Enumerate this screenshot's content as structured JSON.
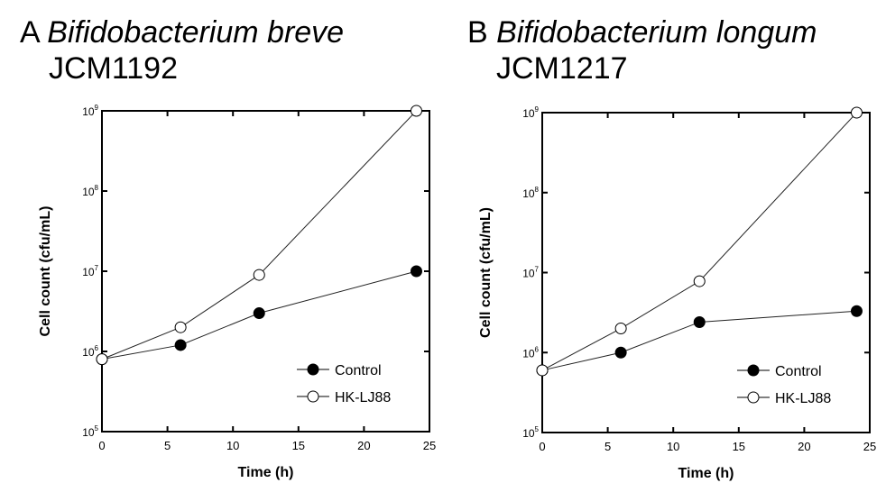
{
  "chart_data": [
    {
      "type": "line",
      "panel_letter": "A",
      "species": "Bifidobacterium breve",
      "strain": "JCM1192",
      "xlabel": "Time (h)",
      "ylabel": "Cell count (cfu/mL)",
      "xlim": [
        0,
        25
      ],
      "ylim": [
        100000,
        1000000000
      ],
      "yscale": "log",
      "xticks": [
        "0",
        "5",
        "10",
        "15",
        "20",
        "25"
      ],
      "yticks": [
        "10",
        "10",
        "10",
        "10",
        "10"
      ],
      "ytick_exps": [
        "5",
        "6",
        "7",
        "8",
        "9"
      ],
      "legend_placement": "bottom-right",
      "x": [
        0,
        6,
        12,
        24
      ],
      "series": [
        {
          "name": "Control",
          "marker": "filled-circle",
          "values": [
            800000,
            1200000,
            3000000,
            10000000
          ]
        },
        {
          "name": "HK-LJ88",
          "marker": "open-circle",
          "values": [
            800000,
            2000000,
            9000000,
            1000000000
          ]
        }
      ]
    },
    {
      "type": "line",
      "panel_letter": "B",
      "species": "Bifidobacterium longum",
      "strain": "JCM1217",
      "xlabel": "Time (h)",
      "ylabel": "Cell count (cfu/mL)",
      "xlim": [
        0,
        25
      ],
      "ylim": [
        100000,
        1000000000
      ],
      "yscale": "log",
      "xticks": [
        "0",
        "5",
        "10",
        "15",
        "20",
        "25"
      ],
      "yticks": [
        "10",
        "10",
        "10",
        "10",
        "10"
      ],
      "ytick_exps": [
        "5",
        "6",
        "7",
        "8",
        "9"
      ],
      "legend_placement": "bottom-right",
      "x": [
        0,
        6,
        12,
        24
      ],
      "series": [
        {
          "name": "Control",
          "marker": "filled-circle",
          "values": [
            600000,
            1000000,
            2400000,
            3300000
          ]
        },
        {
          "name": "HK-LJ88",
          "marker": "open-circle",
          "values": [
            600000,
            2000000,
            7800000,
            1000000000
          ]
        }
      ]
    }
  ]
}
